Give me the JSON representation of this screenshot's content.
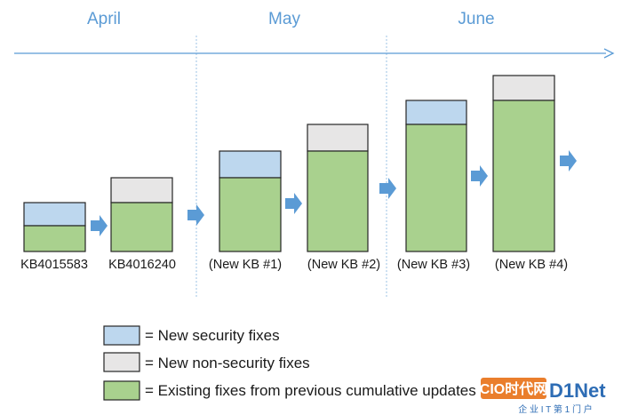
{
  "months": [
    "April",
    "May",
    "June"
  ],
  "colors": {
    "security": "#bdd7ee",
    "nonsecurity": "#e7e6e6",
    "existing": "#a9d18e",
    "timeline": "#5b9bd5",
    "month_text": "#5b9bd5",
    "arrow": "#5b9bd5",
    "divider": "#9dc3e6",
    "stroke": "#262626"
  },
  "updates": [
    {
      "label": "KB4015583",
      "month": "April",
      "new_fix_type": "security"
    },
    {
      "label": "KB4016240",
      "month": "April",
      "new_fix_type": "non-security"
    },
    {
      "label": "(New KB #1)",
      "month": "May",
      "new_fix_type": "security"
    },
    {
      "label": "(New KB #2)",
      "month": "May",
      "new_fix_type": "non-security"
    },
    {
      "label": "(New KB #3)",
      "month": "June",
      "new_fix_type": "security"
    },
    {
      "label": "(New KB #4)",
      "month": "June",
      "new_fix_type": "non-security"
    }
  ],
  "legend": [
    {
      "key": "security",
      "text": "= New security fixes"
    },
    {
      "key": "nonsecurity",
      "text": "= New non-security fixes"
    },
    {
      "key": "existing",
      "text": "= Existing fixes from previous cumulative updates"
    }
  ],
  "watermark": {
    "brand": "CIO时代网 D1Net",
    "tagline": "企 业 I T 第 1 门 户"
  }
}
